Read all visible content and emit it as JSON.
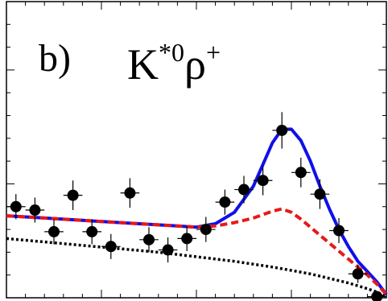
{
  "panel_label": "b)",
  "channel": {
    "base": "K",
    "k_sup": "*0",
    "rho": "ρ",
    "rho_sup": "+"
  },
  "chart_data": {
    "type": "scatter",
    "title": "K*0ρ+",
    "panel": "b)",
    "xlim": [
      0,
      20
    ],
    "ylim": [
      0,
      26
    ],
    "x_ticks": [
      0,
      1,
      2,
      3,
      4,
      5,
      6,
      7,
      8,
      9,
      10,
      11,
      12,
      13,
      14,
      15,
      16,
      17,
      18,
      19,
      20
    ],
    "y_ticks": [
      0,
      2,
      4,
      6,
      8,
      10,
      12,
      14,
      16,
      18,
      20,
      22,
      24,
      26
    ],
    "points": [
      {
        "x": 0.5,
        "y": 8.0,
        "yerr": 1.1
      },
      {
        "x": 1.5,
        "y": 7.7,
        "yerr": 1.1
      },
      {
        "x": 2.5,
        "y": 5.8,
        "yerr": 1.1
      },
      {
        "x": 3.5,
        "y": 9.0,
        "yerr": 1.3
      },
      {
        "x": 4.5,
        "y": 5.8,
        "yerr": 1.1
      },
      {
        "x": 5.5,
        "y": 4.5,
        "yerr": 1.1
      },
      {
        "x": 6.5,
        "y": 9.2,
        "yerr": 1.3
      },
      {
        "x": 7.5,
        "y": 5.1,
        "yerr": 1.1
      },
      {
        "x": 8.5,
        "y": 4.2,
        "yerr": 1.1
      },
      {
        "x": 9.5,
        "y": 5.2,
        "yerr": 1.1
      },
      {
        "x": 10.5,
        "y": 6.0,
        "yerr": 1.1
      },
      {
        "x": 11.5,
        "y": 8.4,
        "yerr": 1.1
      },
      {
        "x": 12.5,
        "y": 9.5,
        "yerr": 1.2
      },
      {
        "x": 13.5,
        "y": 10.3,
        "yerr": 1.3
      },
      {
        "x": 14.5,
        "y": 14.7,
        "yerr": 1.6
      },
      {
        "x": 15.5,
        "y": 11.0,
        "yerr": 1.3
      },
      {
        "x": 16.5,
        "y": 9.1,
        "yerr": 1.3
      },
      {
        "x": 17.5,
        "y": 5.9,
        "yerr": 1.1
      },
      {
        "x": 18.5,
        "y": 2.1,
        "yerr": 0.8
      },
      {
        "x": 19.5,
        "y": 0.1,
        "yerr": 0.5
      }
    ],
    "curves": [
      {
        "style": "solid",
        "color": "#1010e8",
        "x": [
          0,
          2,
          4,
          6,
          8,
          9,
          10,
          11,
          12,
          13,
          13.5,
          14,
          14.5,
          15,
          15.5,
          16,
          16.5,
          17,
          17.5,
          18,
          18.5,
          19,
          19.5,
          20
        ],
        "y": [
          7.2,
          7.0,
          6.8,
          6.6,
          6.4,
          6.3,
          6.2,
          6.5,
          7.5,
          9.8,
          11.7,
          13.6,
          14.8,
          14.8,
          13.8,
          12.0,
          9.8,
          7.8,
          6.0,
          4.5,
          3.2,
          2.3,
          1.4,
          0.3
        ]
      },
      {
        "style": "dashed",
        "color": "#e81818",
        "x": [
          0,
          2,
          4,
          6,
          8,
          9,
          10,
          11,
          12,
          13,
          14,
          14.5,
          15,
          15.5,
          16,
          16.5,
          17,
          17.5,
          18,
          18.5,
          19,
          19.5,
          20
        ],
        "y": [
          7.2,
          7.0,
          6.8,
          6.6,
          6.4,
          6.3,
          6.2,
          6.3,
          6.6,
          7.0,
          7.6,
          7.8,
          7.5,
          6.9,
          6.2,
          5.5,
          4.8,
          4.1,
          3.4,
          2.7,
          2.0,
          1.2,
          0.3
        ]
      },
      {
        "style": "dotted",
        "color": "#000000",
        "x": [
          0,
          2,
          4,
          6,
          8,
          10,
          12,
          14,
          15,
          16,
          17,
          18,
          19,
          19.5,
          20
        ],
        "y": [
          5.2,
          4.9,
          4.6,
          4.3,
          4.0,
          3.6,
          3.2,
          2.7,
          2.4,
          2.1,
          1.7,
          1.3,
          0.8,
          0.5,
          0.1
        ]
      }
    ]
  }
}
